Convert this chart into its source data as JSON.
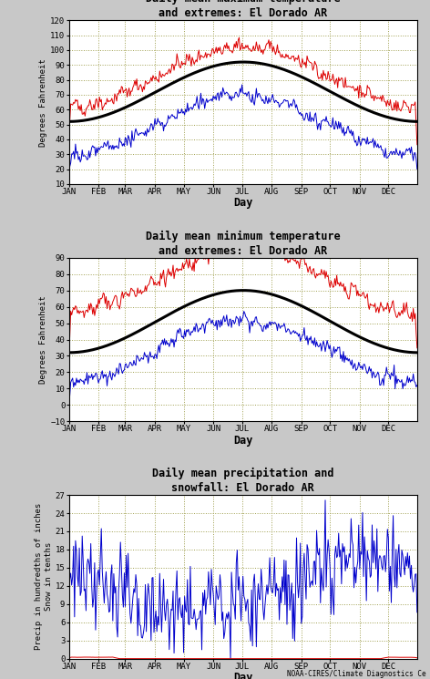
{
  "title1": "Daily mean maximum temperature\nand extremes: El Dorado AR",
  "title2": "Daily mean minimum temperature\nand extremes: El Dorado AR",
  "title3": "Daily mean precipitation and\nsnowfall: El Dorado AR",
  "ylabel1": "Degrees Fahrenheit",
  "ylabel2": "Degrees Fahrenheit",
  "ylabel3": "Precip in hundredths of inches\nSnow in tenths",
  "xlabel": "Day",
  "months": [
    "JAN",
    "FEB",
    "MAR",
    "APR",
    "MAY",
    "JUN",
    "JUL",
    "AUG",
    "SEP",
    "OCT",
    "NOV",
    "DEC"
  ],
  "bg_color": "#c8c8c8",
  "plot_bg": "#ffffff",
  "grid_color": "#a0a050",
  "red_color": "#dd0000",
  "blue_color": "#0000cc",
  "black_color": "#000000",
  "footnote": "NOAA-CIRES/Climate Diagnostics Ce",
  "max_ylim": [
    10,
    120
  ],
  "max_yticks": [
    10,
    20,
    30,
    40,
    50,
    60,
    70,
    80,
    90,
    100,
    110,
    120
  ],
  "min_ylim": [
    -10,
    90
  ],
  "min_yticks": [
    -10,
    0,
    10,
    20,
    30,
    40,
    50,
    60,
    70,
    80,
    90
  ],
  "precip_ylim": [
    0,
    27
  ],
  "precip_yticks": [
    0,
    3,
    6,
    9,
    12,
    15,
    18,
    21,
    24,
    27
  ],
  "month_days": [
    1,
    32,
    60,
    91,
    121,
    152,
    182,
    213,
    244,
    274,
    305,
    335
  ]
}
